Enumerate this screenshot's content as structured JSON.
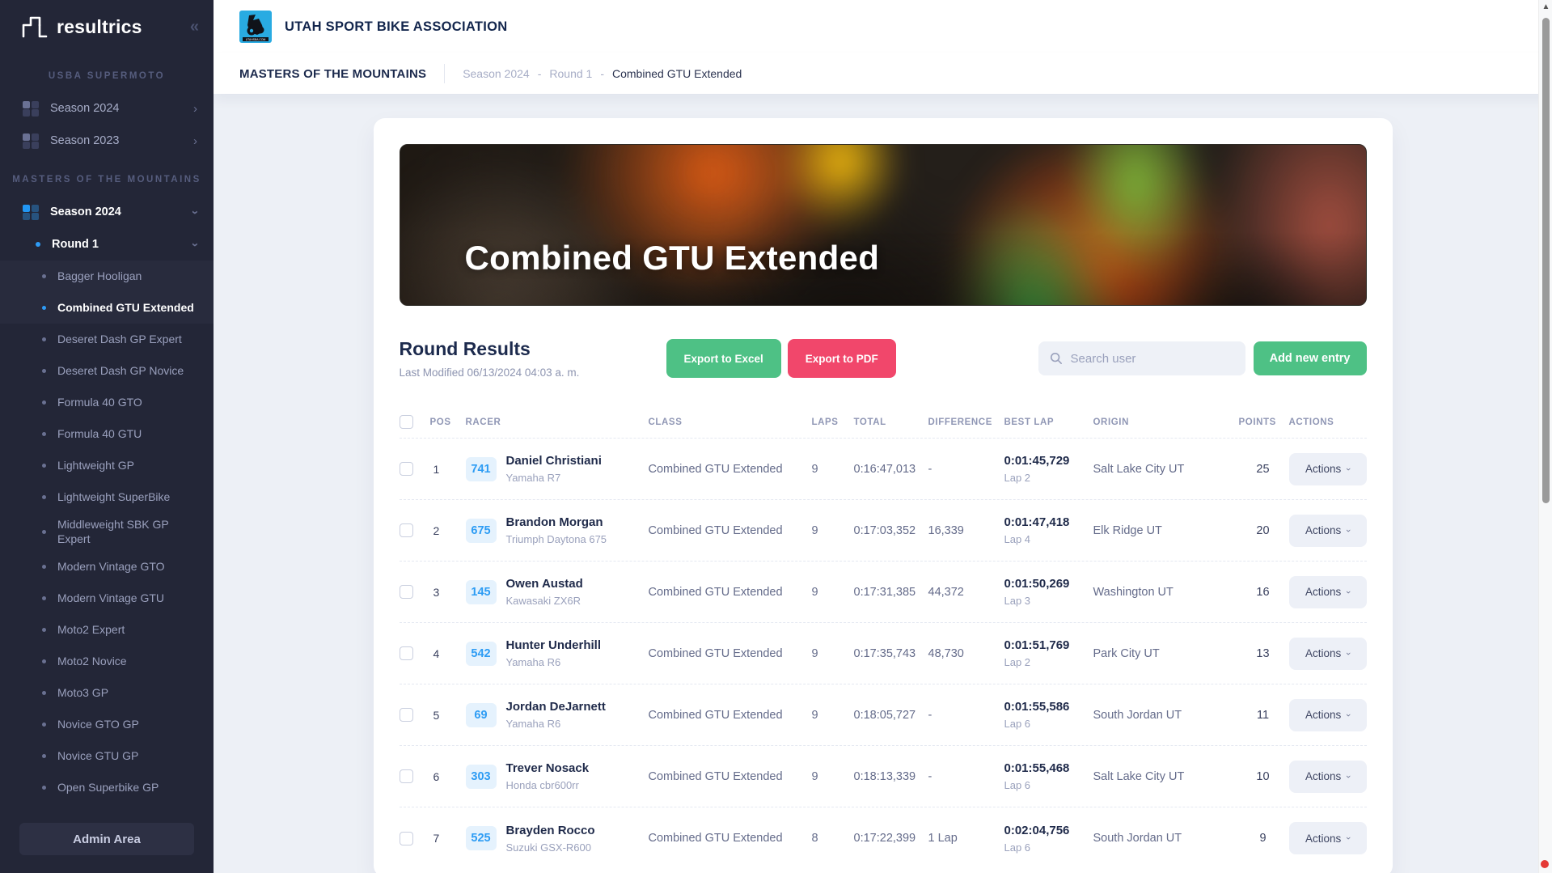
{
  "brand": {
    "name": "resultrics",
    "collapse_icon": "«"
  },
  "sidebar": {
    "sections": [
      {
        "label": "USBA SUPERMOTO"
      },
      {
        "label": "MASTERS OF THE MOUNTAINS"
      }
    ],
    "usba_items": [
      {
        "label": "Season 2024",
        "chevron": "›"
      },
      {
        "label": "Season 2023",
        "chevron": "›"
      }
    ],
    "season": {
      "label": "Season 2024",
      "chevron": "›"
    },
    "round": {
      "label": "Round 1",
      "chevron": "›"
    },
    "classes": [
      {
        "label": "Bagger Hooligan",
        "state": "highlight"
      },
      {
        "label": "Combined GTU Extended",
        "state": "active"
      },
      {
        "label": "Deseret Dash GP Expert",
        "state": "default"
      },
      {
        "label": "Deseret Dash GP Novice",
        "state": "default"
      },
      {
        "label": "Formula 40 GTO",
        "state": "default"
      },
      {
        "label": "Formula 40 GTU",
        "state": "default"
      },
      {
        "label": "Lightweight GP",
        "state": "default"
      },
      {
        "label": "Lightweight SuperBike",
        "state": "default"
      },
      {
        "label": "Middleweight SBK GP Expert",
        "state": "default"
      },
      {
        "label": "Modern Vintage GTO",
        "state": "default"
      },
      {
        "label": "Modern Vintage GTU",
        "state": "default"
      },
      {
        "label": "Moto2 Expert",
        "state": "default"
      },
      {
        "label": "Moto2 Novice",
        "state": "default"
      },
      {
        "label": "Moto3 GP",
        "state": "default"
      },
      {
        "label": "Novice GTO GP",
        "state": "default"
      },
      {
        "label": "Novice GTU GP",
        "state": "default"
      },
      {
        "label": "Open Superbike GP",
        "state": "default"
      }
    ],
    "admin_label": "Admin Area"
  },
  "header": {
    "org_name": "UTAH SPORT BIKE ASSOCIATION",
    "logo_caption": "UTAHSBA.COM",
    "event_name": "MASTERS OF THE MOUNTAINS",
    "breadcrumb": {
      "items": [
        "Season 2024",
        "Round 1",
        "Combined GTU Extended"
      ],
      "separator": "-"
    }
  },
  "content": {
    "banner_title": "Combined GTU Extended",
    "title": "Round Results",
    "last_modified": "Last Modified 06/13/2024 04:03 a. m.",
    "buttons": {
      "export_excel": "Export to Excel",
      "export_pdf": "Export to PDF",
      "add_entry": "Add new entry"
    },
    "search_placeholder": "Search user"
  },
  "table": {
    "headers": [
      "POS",
      "RACER",
      "CLASS",
      "LAPS",
      "TOTAL",
      "DIFFERENCE",
      "BEST LAP",
      "ORIGIN",
      "POINTS",
      "ACTIONS"
    ],
    "actions_label": "Actions",
    "rows": [
      {
        "pos": "1",
        "number": "741",
        "name": "Daniel Christiani",
        "bike": "Yamaha R7",
        "class": "Combined GTU Extended",
        "laps": "9",
        "total": "0:16:47,013",
        "difference": "-",
        "best_lap": "0:01:45,729",
        "best_lap_sub": "Lap 2",
        "origin": "Salt Lake City UT",
        "points": "25"
      },
      {
        "pos": "2",
        "number": "675",
        "name": "Brandon Morgan",
        "bike": "Triumph Daytona 675",
        "class": "Combined GTU Extended",
        "laps": "9",
        "total": "0:17:03,352",
        "difference": "16,339",
        "best_lap": "0:01:47,418",
        "best_lap_sub": "Lap 4",
        "origin": "Elk Ridge UT",
        "points": "20"
      },
      {
        "pos": "3",
        "number": "145",
        "name": "Owen Austad",
        "bike": "Kawasaki ZX6R",
        "class": "Combined GTU Extended",
        "laps": "9",
        "total": "0:17:31,385",
        "difference": "44,372",
        "best_lap": "0:01:50,269",
        "best_lap_sub": "Lap 3",
        "origin": "Washington UT",
        "points": "16"
      },
      {
        "pos": "4",
        "number": "542",
        "name": "Hunter Underhill",
        "bike": "Yamaha R6",
        "class": "Combined GTU Extended",
        "laps": "9",
        "total": "0:17:35,743",
        "difference": "48,730",
        "best_lap": "0:01:51,769",
        "best_lap_sub": "Lap 2",
        "origin": "Park City UT",
        "points": "13"
      },
      {
        "pos": "5",
        "number": "69",
        "name": "Jordan DeJarnett",
        "bike": "Yamaha R6",
        "class": "Combined GTU Extended",
        "laps": "9",
        "total": "0:18:05,727",
        "difference": "-",
        "best_lap": "0:01:55,586",
        "best_lap_sub": "Lap 6",
        "origin": "South Jordan UT",
        "points": "11"
      },
      {
        "pos": "6",
        "number": "303",
        "name": "Trever Nosack",
        "bike": "Honda cbr600rr",
        "class": "Combined GTU Extended",
        "laps": "9",
        "total": "0:18:13,339",
        "difference": "-",
        "best_lap": "0:01:55,468",
        "best_lap_sub": "Lap 6",
        "origin": "Salt Lake City UT",
        "points": "10"
      },
      {
        "pos": "7",
        "number": "525",
        "name": "Brayden Rocco",
        "bike": "Suzuki GSX-R600",
        "class": "Combined GTU Extended",
        "laps": "8",
        "total": "0:17:22,399",
        "difference": "1 Lap",
        "best_lap": "0:02:04,756",
        "best_lap_sub": "Lap 6",
        "origin": "South Jordan UT",
        "points": "9"
      }
    ]
  },
  "colors": {
    "accent_blue": "#2D9CF4",
    "green": "#4EC185",
    "red": "#F1476B",
    "navy": "#1C2A4D",
    "sidebar_bg": "#232637",
    "logo_blue": "#29ABE2"
  }
}
